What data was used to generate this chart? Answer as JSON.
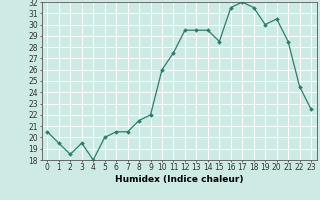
{
  "title": "",
  "xlabel": "Humidex (Indice chaleur)",
  "x": [
    0,
    1,
    2,
    3,
    4,
    5,
    6,
    7,
    8,
    9,
    10,
    11,
    12,
    13,
    14,
    15,
    16,
    17,
    18,
    19,
    20,
    21,
    22,
    23
  ],
  "y": [
    20.5,
    19.5,
    18.5,
    19.5,
    18.0,
    20.0,
    20.5,
    20.5,
    21.5,
    22.0,
    26.0,
    27.5,
    29.5,
    29.5,
    29.5,
    28.5,
    31.5,
    32.0,
    31.5,
    30.0,
    30.5,
    28.5,
    24.5,
    22.5
  ],
  "line_color": "#2d7d6e",
  "marker": "D",
  "marker_size": 2.0,
  "linewidth": 0.9,
  "ylim": [
    18,
    32
  ],
  "yticks": [
    18,
    19,
    20,
    21,
    22,
    23,
    24,
    25,
    26,
    27,
    28,
    29,
    30,
    31,
    32
  ],
  "xticks": [
    0,
    1,
    2,
    3,
    4,
    5,
    6,
    7,
    8,
    9,
    10,
    11,
    12,
    13,
    14,
    15,
    16,
    17,
    18,
    19,
    20,
    21,
    22,
    23
  ],
  "background_color": "#ceeae4",
  "grid_color": "#ffffff",
  "tick_fontsize": 5.5,
  "xlabel_fontsize": 6.5,
  "spine_color": "#555555"
}
